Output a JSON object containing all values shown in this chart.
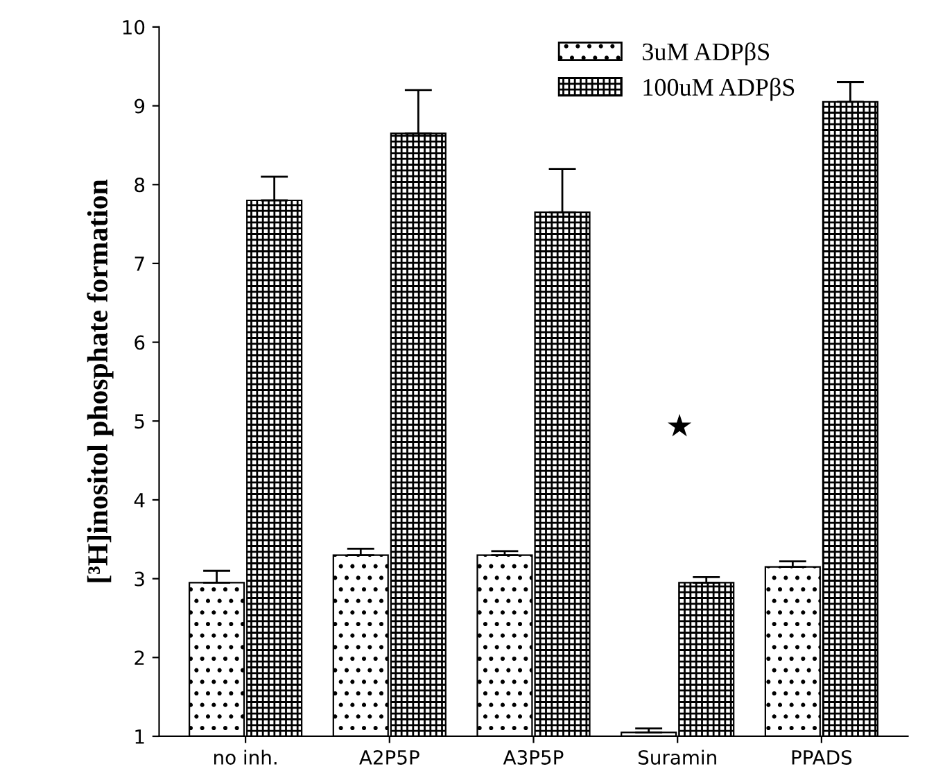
{
  "chart_data": {
    "type": "bar",
    "ylabel": "[³H]inositol phosphate formation",
    "categories": [
      "no inh.",
      "A2P5P",
      "A3P5P",
      "Suramin",
      "PPADS"
    ],
    "series": [
      {
        "name": "3uM ADPβS",
        "color": "#000000",
        "values": [
          2.95,
          3.3,
          3.3,
          1.05,
          3.15
        ],
        "errors": [
          [
            2.95,
            3.1
          ],
          [
            3.3,
            3.38
          ],
          [
            3.3,
            3.35
          ],
          [
            1.05,
            1.1
          ],
          [
            3.15,
            3.22
          ]
        ]
      },
      {
        "name": "100uM ADPβS",
        "color": "#000000",
        "values": [
          7.8,
          8.65,
          7.65,
          2.95,
          9.05
        ],
        "errors": [
          [
            7.8,
            8.1
          ],
          [
            8.65,
            9.2
          ],
          [
            7.65,
            8.2
          ],
          [
            2.95,
            3.02
          ],
          [
            9.05,
            9.3
          ]
        ]
      }
    ],
    "annotations": [
      "★"
    ],
    "ylim": [
      1,
      10
    ],
    "yticks": [
      1,
      2,
      3,
      4,
      5,
      6,
      7,
      8,
      9,
      10
    ],
    "grid": false,
    "legend": "top right"
  }
}
